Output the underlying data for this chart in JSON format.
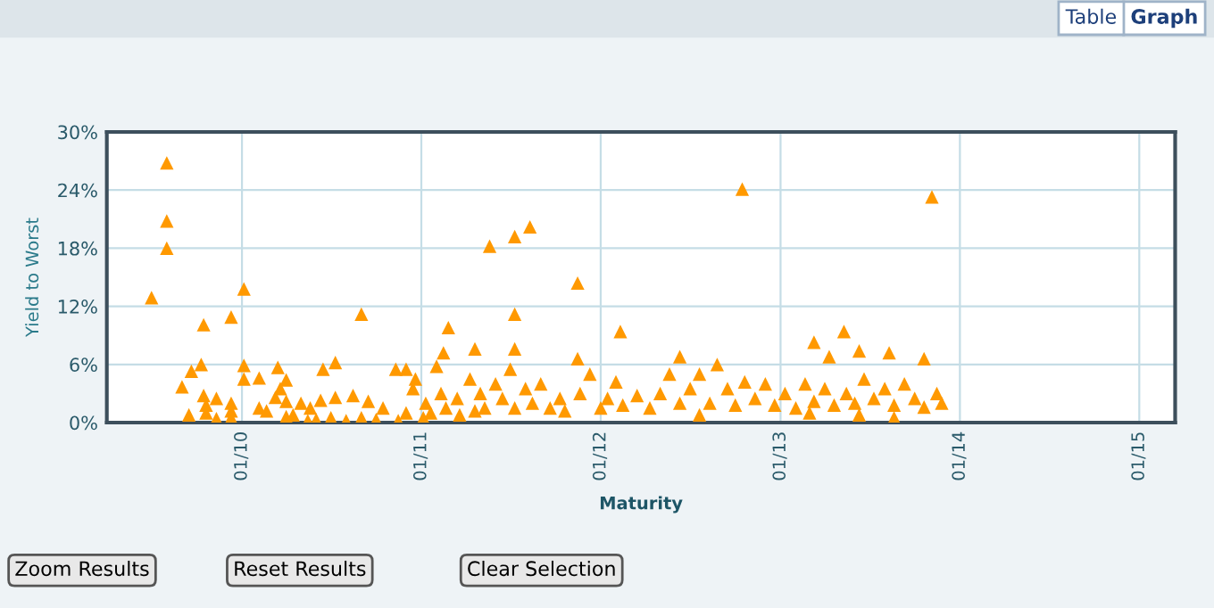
{
  "chart_data": {
    "type": "scatter",
    "xlabel": "Maturity",
    "ylabel": "Yield to Worst",
    "annotations": [
      "Table",
      "Graph",
      "Zoom Results",
      "Reset Results",
      "Clear Selection"
    ],
    "marker": "triangle",
    "grid": true,
    "legend": false,
    "xlim": [
      "2009-04-01",
      "2015-03-15"
    ],
    "xticks": [
      {
        "value": "2010-01-01",
        "label": "01/10"
      },
      {
        "value": "2011-01-01",
        "label": "01/11"
      },
      {
        "value": "2012-01-01",
        "label": "01/12"
      },
      {
        "value": "2013-01-01",
        "label": "01/13"
      },
      {
        "value": "2014-01-01",
        "label": "01/14"
      },
      {
        "value": "2015-01-01",
        "label": "01/15"
      }
    ],
    "ylim": [
      0,
      30
    ],
    "yticks": [
      {
        "value": 0,
        "label": "0%"
      },
      {
        "value": 6,
        "label": "6%"
      },
      {
        "value": 12,
        "label": "12%"
      },
      {
        "value": 18,
        "label": "18%"
      },
      {
        "value": 24,
        "label": "24%"
      },
      {
        "value": 30,
        "label": "30%"
      }
    ],
    "series": [
      {
        "color": "#ff9900",
        "x": [
          "2009-07-01",
          "2009-08-01",
          "2009-08-01",
          "2009-08-01",
          "2009-09-01",
          "2009-09-20",
          "2009-10-10",
          "2009-10-15",
          "2009-10-15",
          "2009-12-10",
          "2010-01-05",
          "2010-01-05",
          "2010-02-05",
          "2010-03-15",
          "2010-04-01",
          "2010-06-15",
          "2010-07-10",
          "2010-09-01",
          "2010-12-01",
          "2011-02-15",
          "2011-02-25",
          "2011-04-20",
          "2011-05-20",
          "2011-07-10",
          "2011-07-10",
          "2011-07-10",
          "2011-08-10",
          "2011-11-15",
          "2011-11-15",
          "2012-02-10",
          "2012-06-10",
          "2012-07-20",
          "2012-10-15",
          "2013-03-10",
          "2013-05-10",
          "2013-06-10",
          "2013-06-10",
          "2013-08-10",
          "2013-08-20",
          "2013-10-20",
          "2013-11-05",
          "2013-04-10",
          "2013-03-01",
          "2009-09-15",
          "2009-10-20",
          "2009-10-20",
          "2009-11-10",
          "2009-11-10",
          "2009-12-10",
          "2009-12-10",
          "2009-12-10",
          "2010-01-05",
          "2010-02-05",
          "2010-02-20",
          "2010-03-10",
          "2010-03-20",
          "2010-04-01",
          "2010-04-01",
          "2010-04-15",
          "2010-05-01",
          "2010-05-15",
          "2010-05-20",
          "2010-06-01",
          "2010-06-10",
          "2010-07-01",
          "2010-07-10",
          "2010-08-01",
          "2010-08-15",
          "2010-09-01",
          "2010-09-15",
          "2010-10-01",
          "2010-10-15",
          "2010-11-10",
          "2010-11-15",
          "2010-12-01",
          "2010-12-15",
          "2010-12-20",
          "2011-01-05",
          "2011-01-10",
          "2011-01-20",
          "2011-02-01",
          "2011-02-10",
          "2011-02-20",
          "2011-03-15",
          "2011-03-20",
          "2011-04-10",
          "2011-04-20",
          "2011-05-01",
          "2011-05-10",
          "2011-06-01",
          "2011-06-15",
          "2011-07-01",
          "2011-07-10",
          "2011-08-01",
          "2011-08-15",
          "2011-09-01",
          "2011-09-20",
          "2011-10-10",
          "2011-10-20",
          "2011-11-20",
          "2011-12-10",
          "2012-01-01",
          "2012-01-15",
          "2012-02-01",
          "2012-02-15",
          "2012-03-15",
          "2012-04-10",
          "2012-05-01",
          "2012-05-20",
          "2012-06-10",
          "2012-07-01",
          "2012-07-20",
          "2012-08-10",
          "2012-08-25",
          "2012-09-15",
          "2012-10-01",
          "2012-10-20",
          "2012-11-10",
          "2012-12-01",
          "2012-12-20",
          "2013-01-10",
          "2013-02-01",
          "2013-02-20",
          "2013-03-10",
          "2013-04-01",
          "2013-04-20",
          "2013-05-15",
          "2013-06-01",
          "2013-06-20",
          "2013-07-10",
          "2013-08-01",
          "2013-08-20",
          "2013-09-10",
          "2013-10-01",
          "2013-10-20",
          "2013-11-15",
          "2013-11-25"
        ],
        "values": [
          12.9,
          26.8,
          20.8,
          18.0,
          3.7,
          5.3,
          6.0,
          10.1,
          2.8,
          10.9,
          13.8,
          5.9,
          4.6,
          5.7,
          4.4,
          5.5,
          6.2,
          11.2,
          5.5,
          7.2,
          9.8,
          7.6,
          18.2,
          19.2,
          11.2,
          7.6,
          20.2,
          14.4,
          6.6,
          9.4,
          6.8,
          0.8,
          24.1,
          8.3,
          9.4,
          7.4,
          0.8,
          7.2,
          0.5,
          6.6,
          23.3,
          6.8,
          1.0,
          0.8,
          1.0,
          1.8,
          0.4,
          2.5,
          0.5,
          1.2,
          2.0,
          4.5,
          1.5,
          1.2,
          2.6,
          3.5,
          0.6,
          2.2,
          0.8,
          2.0,
          0.2,
          1.5,
          0.3,
          2.3,
          0.5,
          2.6,
          0.2,
          2.8,
          0.5,
          2.2,
          0.3,
          1.5,
          5.5,
          0.2,
          1.0,
          3.5,
          4.5,
          0.5,
          2.0,
          1.0,
          5.8,
          3.0,
          1.5,
          2.5,
          0.8,
          4.5,
          1.2,
          3.0,
          1.5,
          4.0,
          2.5,
          5.5,
          1.5,
          3.5,
          2.0,
          4.0,
          1.5,
          2.5,
          1.2,
          3.0,
          5.0,
          1.5,
          2.5,
          4.2,
          1.8,
          2.8,
          1.5,
          3.0,
          5.0,
          2.0,
          3.5,
          5.0,
          2.0,
          6.0,
          3.5,
          1.8,
          4.2,
          2.5,
          4.0,
          1.8,
          3.0,
          1.5,
          4.0,
          2.2,
          3.5,
          1.8,
          3.0,
          2.0,
          4.5,
          2.5,
          3.5,
          1.8,
          4.0,
          2.5,
          1.6,
          3.0,
          2.0
        ]
      }
    ]
  }
}
